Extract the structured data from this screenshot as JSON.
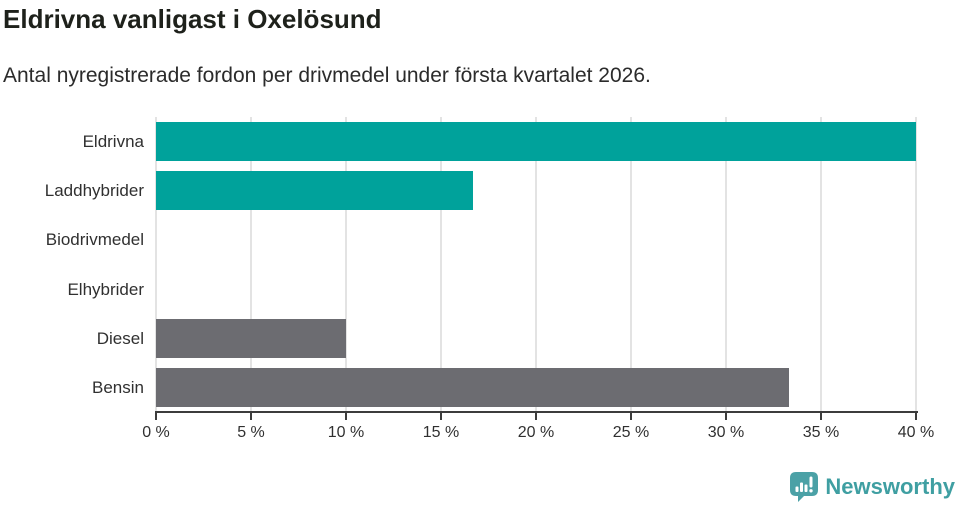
{
  "header": {
    "title": "Eldrivna vanligast i Oxelösund",
    "subtitle": "Antal nyregistrerade fordon per drivmedel under första kvartalet 2026."
  },
  "chart_data": {
    "type": "bar",
    "orientation": "horizontal",
    "title": "Eldrivna vanligast i Oxelösund",
    "subtitle": "Antal nyregistrerade fordon per drivmedel under första kvartalet 2026.",
    "categories": [
      "Eldrivna",
      "Laddhybrider",
      "Biodrivmedel",
      "Elhybrider",
      "Diesel",
      "Bensin"
    ],
    "values": [
      40,
      16.7,
      0,
      0,
      10,
      33.3
    ],
    "unit": "%",
    "xlim": [
      0,
      40
    ],
    "x_tick_values": [
      0,
      5,
      10,
      15,
      20,
      25,
      30,
      35,
      40
    ],
    "x_ticks": [
      "0 %",
      "5 %",
      "10 %",
      "15 %",
      "20 %",
      "25 %",
      "30 %",
      "35 %",
      "40 %"
    ],
    "bar_colors": [
      "#00a29b",
      "#00a29b",
      "#00a29b",
      "#00a29b",
      "#6c6c71",
      "#6c6c71"
    ],
    "grid": "vertical-only",
    "legend": "none",
    "xlabel": "",
    "ylabel": ""
  },
  "colors": {
    "accent_teal": "#00a29b",
    "neutral_gray": "#6c6c71",
    "gridline": "#e3e3e3",
    "axis": "#3c3c3c",
    "logo_teal": "#4ba1a6",
    "brand_text": "#3f9fa2"
  },
  "footer": {
    "brand": "Newsworthy",
    "logo_icon": "newsworthy-speech-bubble-chart-icon"
  }
}
